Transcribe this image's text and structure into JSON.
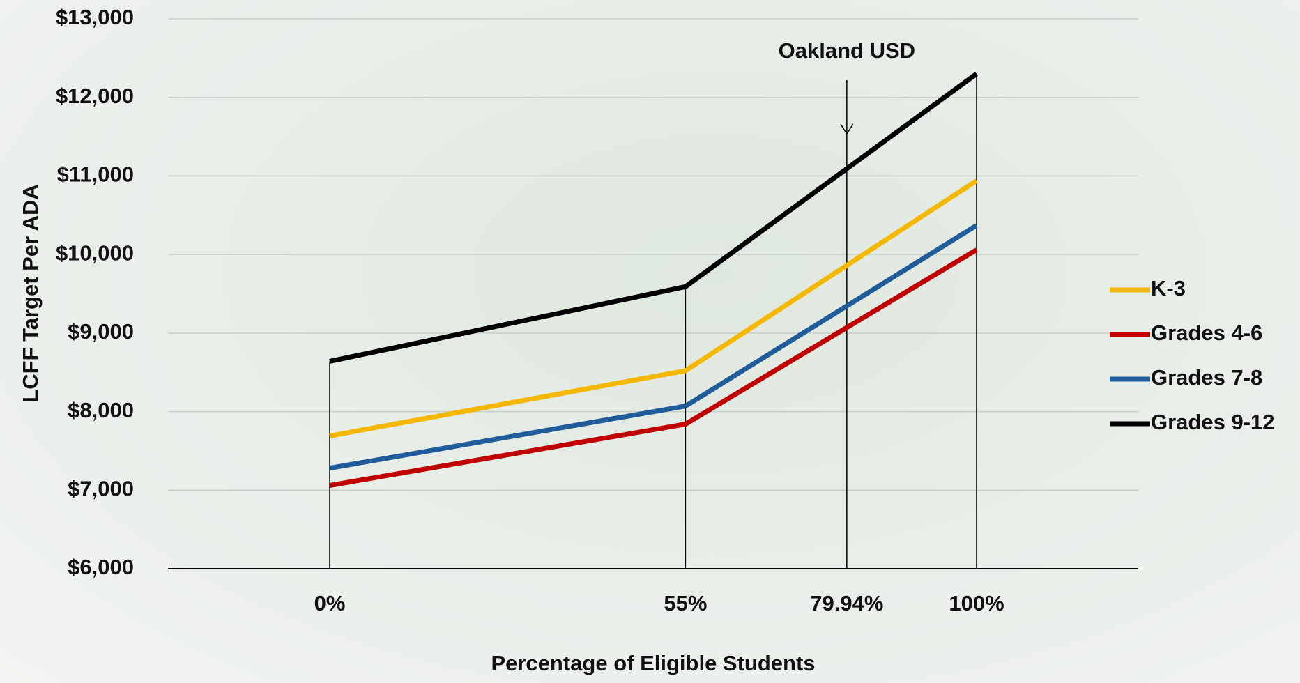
{
  "chart_data": {
    "type": "line",
    "x_label": "Percentage of Eligible Students",
    "y_label": "LCFF Target Per ADA",
    "x": [
      0,
      55,
      100
    ],
    "xlim": [
      -25,
      125
    ],
    "xticks": [
      {
        "value": 0,
        "label": "0%"
      },
      {
        "value": 55,
        "label": "55%"
      },
      {
        "value": 79.94,
        "label": "79.94%"
      },
      {
        "value": 100,
        "label": "100%"
      }
    ],
    "ylim": [
      6000,
      13000
    ],
    "yticks": [
      {
        "value": 6000,
        "label": "$6,000"
      },
      {
        "value": 7000,
        "label": "$7,000"
      },
      {
        "value": 8000,
        "label": "$8,000"
      },
      {
        "value": 9000,
        "label": "$9,000"
      },
      {
        "value": 10000,
        "label": "$10,000"
      },
      {
        "value": 11000,
        "label": "$11,000"
      },
      {
        "value": 12000,
        "label": "$12,000"
      },
      {
        "value": 13000,
        "label": "$13,000"
      }
    ],
    "grid": true,
    "legend": "right",
    "annotation": {
      "text": "Oakland USD",
      "tick": 2
    },
    "series": [
      {
        "name": "K-3",
        "color": "#f5b800",
        "values": [
          7690,
          8520,
          10940
        ]
      },
      {
        "name": "Grades 4-6",
        "color": "#c00000",
        "values": [
          7060,
          7840,
          10060
        ]
      },
      {
        "name": "Grades 7-8",
        "color": "#1f5c99",
        "values": [
          7280,
          8070,
          10370
        ]
      },
      {
        "name": "Grades 9-12",
        "color": "#000000",
        "values": [
          8640,
          9590,
          12300
        ]
      }
    ]
  }
}
